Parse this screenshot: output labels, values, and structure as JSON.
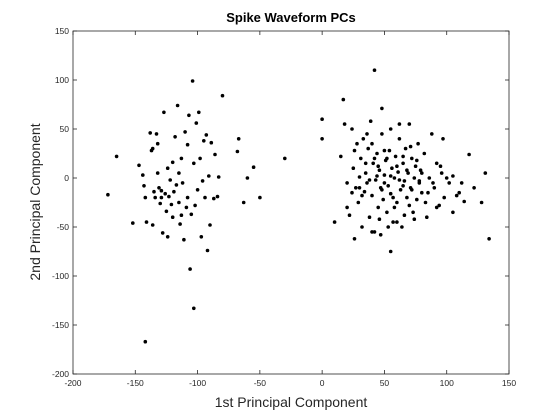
{
  "chart_data": {
    "type": "scatter",
    "title": "Spike Waveform PCs",
    "xlabel": "1st Principal Component",
    "ylabel": "2nd Principal Component",
    "xlim": [
      -200,
      150
    ],
    "ylim": [
      -200,
      150
    ],
    "xticks": [
      -200,
      -150,
      -100,
      -50,
      0,
      50,
      100,
      150
    ],
    "yticks": [
      -200,
      -150,
      -100,
      -50,
      0,
      50,
      100,
      150
    ],
    "grid": false,
    "marker_color": "#000000",
    "points": [
      [
        -172,
        -17
      ],
      [
        -165,
        22
      ],
      [
        -152,
        -46
      ],
      [
        -147,
        13
      ],
      [
        -144,
        3
      ],
      [
        -143,
        -8
      ],
      [
        -142,
        -20
      ],
      [
        -141,
        -45
      ],
      [
        -138,
        46
      ],
      [
        -137,
        28
      ],
      [
        -136,
        -48
      ],
      [
        -135,
        -14
      ],
      [
        -134,
        -20
      ],
      [
        -133,
        45
      ],
      [
        -132,
        35
      ],
      [
        -131,
        -10
      ],
      [
        -130,
        -26
      ],
      [
        -129,
        -13
      ],
      [
        -128,
        -56
      ],
      [
        -127,
        67
      ],
      [
        -126,
        -16
      ],
      [
        -125,
        -34
      ],
      [
        -124,
        -60
      ],
      [
        -123,
        -19
      ],
      [
        -122,
        -2
      ],
      [
        -121,
        -27
      ],
      [
        -120,
        16
      ],
      [
        -119,
        -14
      ],
      [
        -118,
        42
      ],
      [
        -117,
        -7
      ],
      [
        -116,
        74
      ],
      [
        -115,
        -25
      ],
      [
        -114,
        -47
      ],
      [
        -113,
        20
      ],
      [
        -112,
        -5
      ],
      [
        -111,
        -63
      ],
      [
        -110,
        47
      ],
      [
        -109,
        -30
      ],
      [
        -108,
        -20
      ],
      [
        -107,
        64
      ],
      [
        -106,
        -93
      ],
      [
        -105,
        -37
      ],
      [
        -104,
        99
      ],
      [
        -103,
        15
      ],
      [
        -102,
        -28
      ],
      [
        -101,
        56
      ],
      [
        -100,
        -12
      ],
      [
        -99,
        67
      ],
      [
        -98,
        20
      ],
      [
        -97,
        -60
      ],
      [
        -96,
        -3
      ],
      [
        -95,
        38
      ],
      [
        -94,
        -20
      ],
      [
        -93,
        44
      ],
      [
        -92,
        -74
      ],
      [
        -91,
        2
      ],
      [
        -90,
        -48
      ],
      [
        -89,
        36
      ],
      [
        -87,
        -21
      ],
      [
        -86,
        24
      ],
      [
        -84,
        -19
      ],
      [
        -83,
        1
      ],
      [
        -80,
        84
      ],
      [
        -68,
        27
      ],
      [
        -67,
        40
      ],
      [
        -63,
        -25
      ],
      [
        -60,
        0
      ],
      [
        -55,
        11
      ],
      [
        -50,
        -20
      ],
      [
        -30,
        20
      ],
      [
        -142,
        -167
      ],
      [
        -103,
        -133
      ],
      [
        -113,
        -38
      ],
      [
        -129,
        -20
      ],
      [
        -136,
        30
      ],
      [
        -115,
        5
      ],
      [
        -108,
        34
      ],
      [
        -120,
        -40
      ],
      [
        -124,
        10
      ],
      [
        -132,
        5
      ],
      [
        0,
        60
      ],
      [
        0,
        40
      ],
      [
        10,
        -45
      ],
      [
        15,
        22
      ],
      [
        17,
        80
      ],
      [
        18,
        55
      ],
      [
        20,
        -30
      ],
      [
        22,
        -38
      ],
      [
        24,
        50
      ],
      [
        25,
        10
      ],
      [
        26,
        -62
      ],
      [
        27,
        -10
      ],
      [
        28,
        35
      ],
      [
        29,
        -25
      ],
      [
        30,
        1
      ],
      [
        31,
        20
      ],
      [
        32,
        -50
      ],
      [
        33,
        40
      ],
      [
        34,
        -14
      ],
      [
        35,
        5
      ],
      [
        36,
        -5
      ],
      [
        37,
        30
      ],
      [
        38,
        -40
      ],
      [
        39,
        58
      ],
      [
        40,
        -18
      ],
      [
        41,
        15
      ],
      [
        42,
        -55
      ],
      [
        43,
        -2
      ],
      [
        44,
        25
      ],
      [
        45,
        -30
      ],
      [
        46,
        8
      ],
      [
        47,
        -10
      ],
      [
        48,
        45
      ],
      [
        49,
        -22
      ],
      [
        50,
        3
      ],
      [
        51,
        18
      ],
      [
        52,
        -35
      ],
      [
        53,
        -8
      ],
      [
        54,
        28
      ],
      [
        55,
        -16
      ],
      [
        56,
        10
      ],
      [
        57,
        -45
      ],
      [
        58,
        0
      ],
      [
        59,
        22
      ],
      [
        60,
        -25
      ],
      [
        61,
        6
      ],
      [
        62,
        40
      ],
      [
        63,
        -12
      ],
      [
        64,
        -50
      ],
      [
        65,
        15
      ],
      [
        66,
        -3
      ],
      [
        67,
        30
      ],
      [
        68,
        -20
      ],
      [
        69,
        5
      ],
      [
        70,
        55
      ],
      [
        71,
        -10
      ],
      [
        72,
        20
      ],
      [
        73,
        -35
      ],
      [
        74,
        0
      ],
      [
        75,
        12
      ],
      [
        76,
        -22
      ],
      [
        77,
        35
      ],
      [
        78,
        -5
      ],
      [
        79,
        8
      ],
      [
        80,
        -15
      ],
      [
        82,
        25
      ],
      [
        84,
        -40
      ],
      [
        86,
        0
      ],
      [
        88,
        45
      ],
      [
        90,
        -10
      ],
      [
        92,
        15
      ],
      [
        94,
        -28
      ],
      [
        96,
        5
      ],
      [
        98,
        -20
      ],
      [
        100,
        0
      ],
      [
        102,
        -5
      ],
      [
        105,
        -35
      ],
      [
        110,
        -15
      ],
      [
        114,
        -24
      ],
      [
        118,
        24
      ],
      [
        122,
        -10
      ],
      [
        128,
        -25
      ],
      [
        131,
        5
      ],
      [
        134,
        -62
      ],
      [
        42,
        110
      ],
      [
        48,
        71
      ],
      [
        55,
        -75
      ],
      [
        40,
        -55
      ],
      [
        20,
        -5
      ],
      [
        30,
        -10
      ],
      [
        45,
        12
      ],
      [
        50,
        -5
      ],
      [
        55,
        2
      ],
      [
        60,
        12
      ],
      [
        65,
        -8
      ],
      [
        35,
        15
      ],
      [
        38,
        -2
      ],
      [
        42,
        20
      ],
      [
        48,
        -12
      ],
      [
        52,
        20
      ],
      [
        58,
        -30
      ],
      [
        62,
        -2
      ],
      [
        68,
        8
      ],
      [
        72,
        -12
      ],
      [
        46,
        -42
      ],
      [
        40,
        35
      ],
      [
        36,
        45
      ],
      [
        55,
        50
      ],
      [
        62,
        55
      ],
      [
        70,
        -28
      ],
      [
        76,
        18
      ],
      [
        44,
        2
      ],
      [
        50,
        28
      ],
      [
        57,
        -20
      ],
      [
        32,
        -18
      ],
      [
        26,
        28
      ],
      [
        24,
        -15
      ],
      [
        65,
        22
      ],
      [
        71,
        32
      ],
      [
        80,
        5
      ],
      [
        85,
        -15
      ],
      [
        92,
        -30
      ],
      [
        97,
        40
      ],
      [
        105,
        2
      ],
      [
        108,
        -18
      ],
      [
        112,
        -5
      ],
      [
        60,
        -45
      ],
      [
        53,
        -50
      ],
      [
        47,
        -58
      ],
      [
        66,
        -38
      ],
      [
        74,
        -42
      ],
      [
        83,
        -25
      ],
      [
        89,
        -5
      ],
      [
        95,
        12
      ],
      [
        78,
        -3
      ]
    ]
  }
}
